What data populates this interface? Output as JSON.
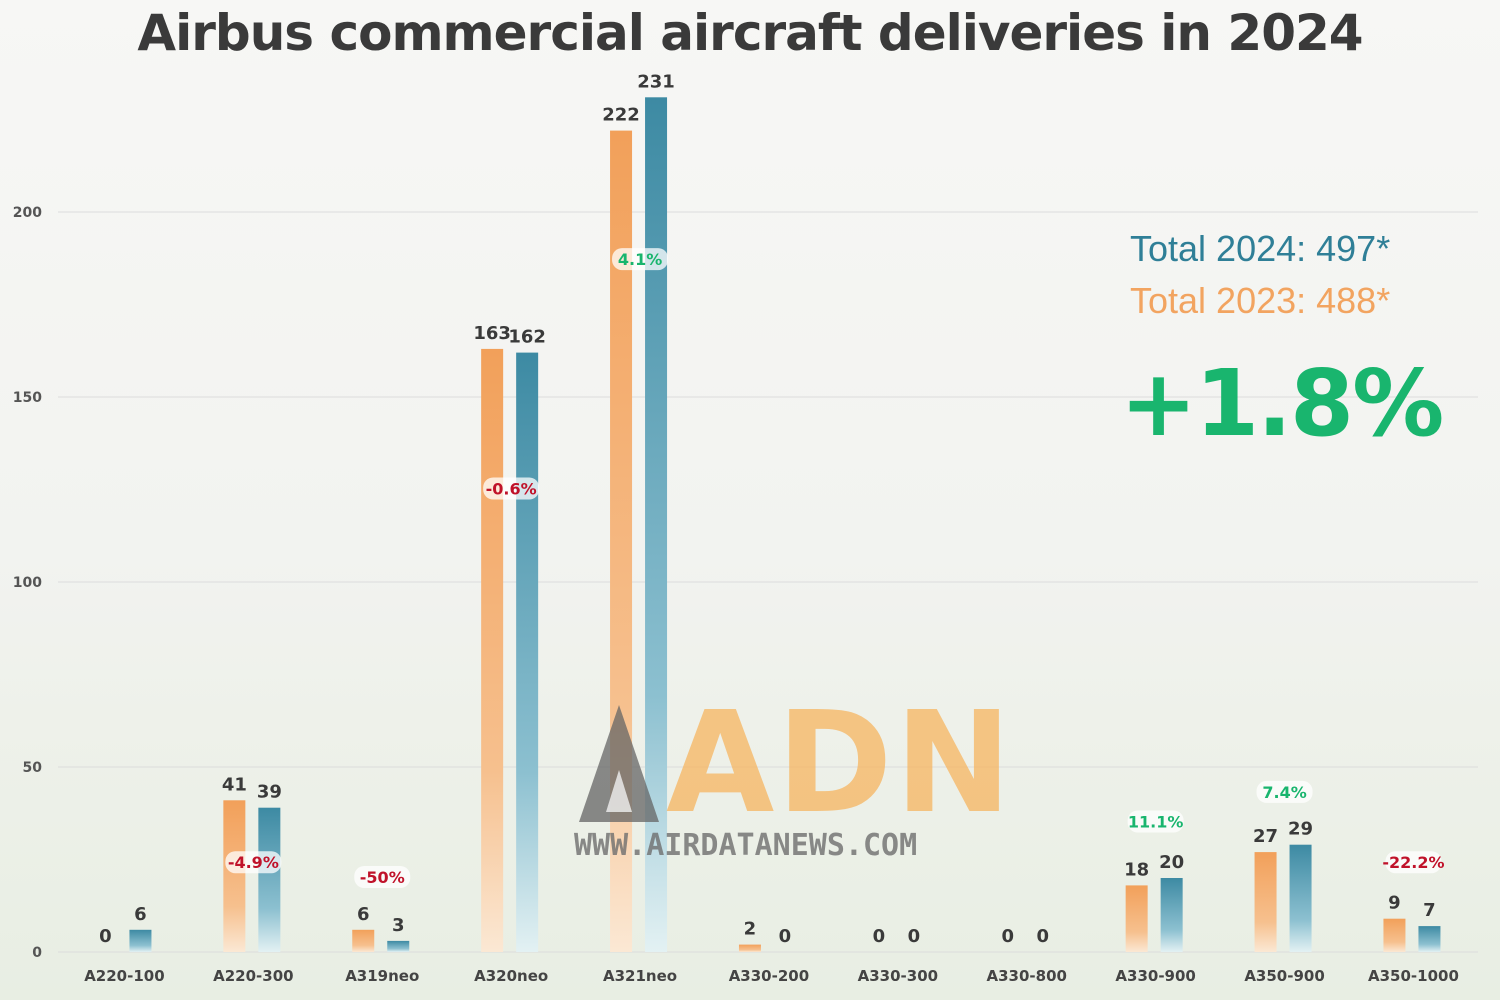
{
  "title": "Airbus commercial aircraft deliveries in 2024",
  "totals": {
    "total_2024": "Total 2024: 497*",
    "total_2023": "Total 2023: 488*",
    "change": "+1.8%"
  },
  "watermark": {
    "logo_text": "ADN",
    "url": "WWW.AIRDATANEWS.COM"
  },
  "colors": {
    "series_2023": "#f2a460",
    "series_2024": "#3d8aa3",
    "positive": "#19b56e",
    "negative": "#c0122a"
  },
  "chart_data": {
    "type": "bar",
    "title": "Airbus commercial aircraft deliveries in 2024",
    "xlabel": "",
    "ylabel": "",
    "ylim": [
      0,
      250
    ],
    "yticks": [
      0,
      50,
      100,
      150,
      200
    ],
    "grid": true,
    "categories": [
      "A220-100",
      "A220-300",
      "A319neo",
      "A320neo",
      "A321neo",
      "A330-200",
      "A330-300",
      "A330-800",
      "A330-900",
      "A350-900",
      "A350-1000"
    ],
    "series": [
      {
        "name": "2023",
        "values": [
          0,
          41,
          6,
          163,
          222,
          2,
          0,
          0,
          18,
          27,
          9
        ]
      },
      {
        "name": "2024",
        "values": [
          6,
          39,
          3,
          162,
          231,
          0,
          0,
          0,
          20,
          29,
          7
        ]
      }
    ],
    "annotations": [
      {
        "category": "A220-300",
        "text": "-4.9%",
        "sign": "negative",
        "y_value": 24
      },
      {
        "category": "A319neo",
        "text": "-50%",
        "sign": "negative",
        "y_value": 20
      },
      {
        "category": "A320neo",
        "text": "-0.6%",
        "sign": "negative",
        "y_value": 125
      },
      {
        "category": "A321neo",
        "text": "4.1%",
        "sign": "positive",
        "y_value": 187
      },
      {
        "category": "A330-900",
        "text": "11.1%",
        "sign": "positive",
        "y_value": 35
      },
      {
        "category": "A350-900",
        "text": "7.4%",
        "sign": "positive",
        "y_value": 43
      },
      {
        "category": "A350-1000",
        "text": "-22.2%",
        "sign": "negative",
        "y_value": 24
      }
    ]
  }
}
